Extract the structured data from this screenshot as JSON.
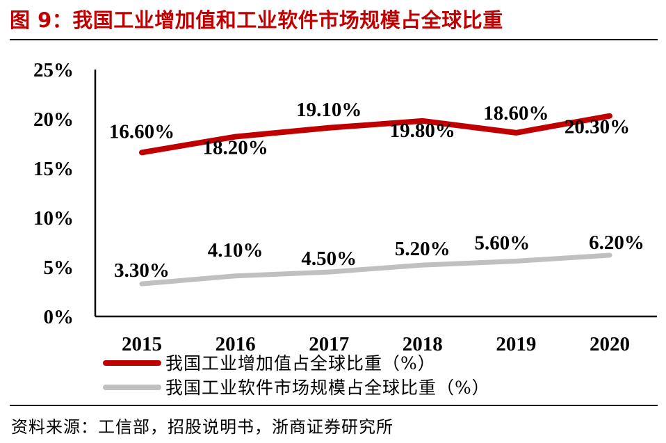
{
  "figure": {
    "title": "图 9：我国工业增加值和工业软件市场规模占全球比重",
    "source": "资料来源：工信部，招股说明书，浙商证券研究所"
  },
  "chart_data": {
    "type": "line",
    "categories": [
      "2015",
      "2016",
      "2017",
      "2018",
      "2019",
      "2020"
    ],
    "ylim": [
      0,
      25
    ],
    "yticks": [
      "0%",
      "5%",
      "10%",
      "15%",
      "20%",
      "25%"
    ],
    "grid": false,
    "legend_position": "bottom",
    "series": [
      {
        "name": "我国工业增加值占全球比重（%）",
        "color": "#c00000",
        "values": [
          16.6,
          18.2,
          19.1,
          19.8,
          18.6,
          20.3
        ],
        "labels": [
          "16.60%",
          "18.20%",
          "19.10%",
          "19.80%",
          "18.60%",
          "20.30%"
        ]
      },
      {
        "name": "我国工业软件市场规模占全球比重（%）",
        "color": "#c0c0c0",
        "values": [
          3.3,
          4.1,
          4.5,
          5.2,
          5.6,
          6.2
        ],
        "labels": [
          "3.30%",
          "4.10%",
          "4.50%",
          "5.20%",
          "5.60%",
          "6.20%"
        ]
      }
    ]
  }
}
